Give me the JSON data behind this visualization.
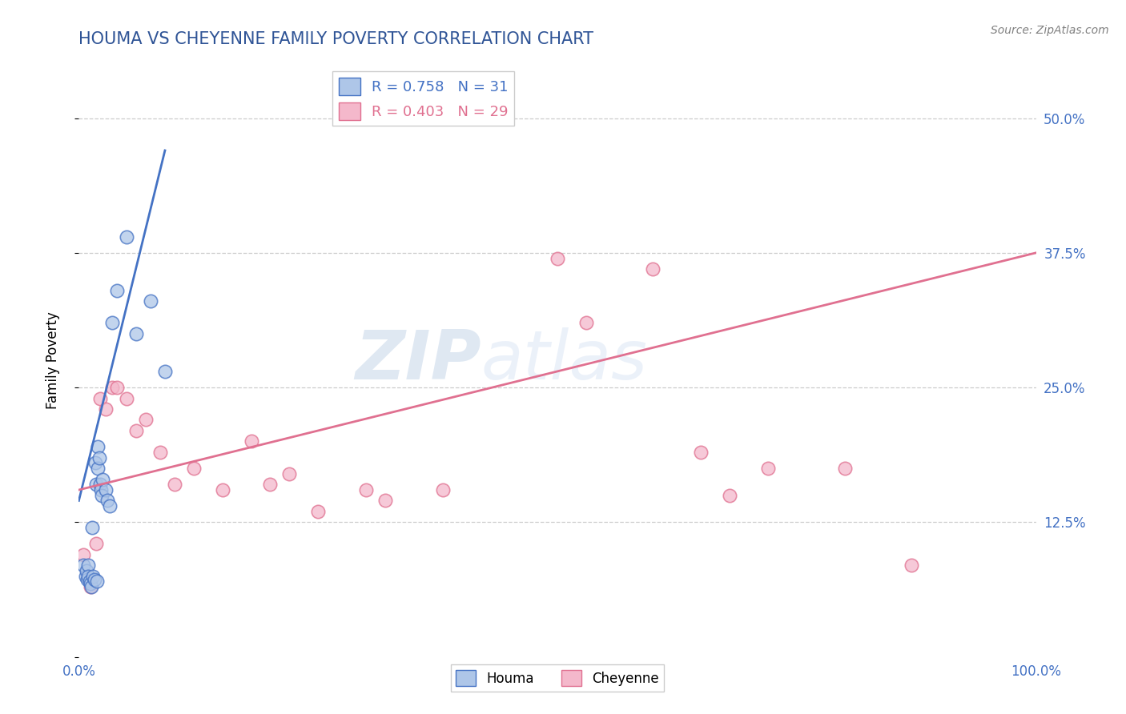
{
  "title": "HOUMA VS CHEYENNE FAMILY POVERTY CORRELATION CHART",
  "source": "Source: ZipAtlas.com",
  "ylabel": "Family Poverty",
  "xlim": [
    0,
    1.0
  ],
  "ylim": [
    0,
    0.55
  ],
  "legend_r_houma": "0.758",
  "legend_n_houma": "31",
  "legend_r_cheyenne": "0.403",
  "legend_n_cheyenne": "29",
  "houma_color": "#aec6e8",
  "cheyenne_color": "#f4b8cb",
  "houma_line_color": "#4472c4",
  "cheyenne_line_color": "#e07090",
  "watermark_zip": "ZIP",
  "watermark_atlas": "atlas",
  "houma_x": [
    0.005,
    0.007,
    0.008,
    0.009,
    0.01,
    0.01,
    0.011,
    0.012,
    0.013,
    0.014,
    0.015,
    0.016,
    0.017,
    0.018,
    0.019,
    0.02,
    0.02,
    0.021,
    0.022,
    0.023,
    0.024,
    0.025,
    0.028,
    0.03,
    0.032,
    0.035,
    0.04,
    0.05,
    0.06,
    0.075,
    0.09
  ],
  "houma_y": [
    0.085,
    0.075,
    0.08,
    0.072,
    0.085,
    0.075,
    0.07,
    0.068,
    0.065,
    0.12,
    0.075,
    0.072,
    0.18,
    0.16,
    0.07,
    0.195,
    0.175,
    0.185,
    0.16,
    0.155,
    0.15,
    0.165,
    0.155,
    0.145,
    0.14,
    0.31,
    0.34,
    0.39,
    0.3,
    0.33,
    0.265
  ],
  "cheyenne_x": [
    0.005,
    0.012,
    0.018,
    0.022,
    0.028,
    0.035,
    0.04,
    0.05,
    0.06,
    0.07,
    0.085,
    0.1,
    0.12,
    0.15,
    0.18,
    0.2,
    0.22,
    0.25,
    0.3,
    0.32,
    0.38,
    0.5,
    0.53,
    0.6,
    0.65,
    0.68,
    0.72,
    0.8,
    0.87
  ],
  "cheyenne_y": [
    0.095,
    0.065,
    0.105,
    0.24,
    0.23,
    0.25,
    0.25,
    0.24,
    0.21,
    0.22,
    0.19,
    0.16,
    0.175,
    0.155,
    0.2,
    0.16,
    0.17,
    0.135,
    0.155,
    0.145,
    0.155,
    0.37,
    0.31,
    0.36,
    0.19,
    0.15,
    0.175,
    0.175,
    0.085
  ],
  "houma_line_x": [
    0.0,
    0.09
  ],
  "houma_line_y": [
    0.145,
    0.47
  ],
  "cheyenne_line_x": [
    0.0,
    1.0
  ],
  "cheyenne_line_y": [
    0.155,
    0.375
  ]
}
